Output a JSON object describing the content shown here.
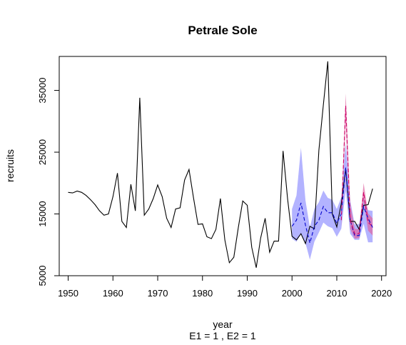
{
  "chart_data": {
    "type": "line",
    "title": "Petrale Sole",
    "xlabel": "year",
    "subtitle": "E1 = 1 , E2 = 1",
    "ylabel": "recruits",
    "xlim": [
      1948,
      2021
    ],
    "ylim": [
      5000,
      40500
    ],
    "xticks": [
      1950,
      1960,
      1970,
      1980,
      1990,
      2000,
      2010,
      2020
    ],
    "yticks": [
      5000,
      15000,
      25000,
      35000
    ],
    "grid": false,
    "colors": {
      "observed": "#000000",
      "forecast1": "#0000cc",
      "band1": "#9999ff",
      "forecast2": "#cc0066",
      "band2": "#e066a3"
    },
    "series": [
      {
        "role": "observed",
        "x": [
          1950,
          1951,
          1952,
          1953,
          1954,
          1955,
          1956,
          1957,
          1958,
          1959,
          1960,
          1961,
          1962,
          1963,
          1964,
          1965,
          1966,
          1967,
          1968,
          1969,
          1970,
          1971,
          1972,
          1973,
          1974,
          1975,
          1976,
          1977,
          1978,
          1979,
          1980,
          1981,
          1982,
          1983,
          1984,
          1985,
          1986,
          1987,
          1988,
          1989,
          1990,
          1991,
          1992,
          1993,
          1994,
          1995,
          1996,
          1997,
          1998,
          1999,
          2000,
          2001,
          2002,
          2003,
          2004,
          2005,
          2006,
          2007,
          2008,
          2009,
          2010,
          2011,
          2012,
          2013,
          2014,
          2015,
          2016,
          2017,
          2018
        ],
        "y": [
          18500,
          18400,
          18700,
          18500,
          18000,
          17300,
          16500,
          15500,
          14800,
          15000,
          17800,
          21600,
          13800,
          12800,
          19800,
          15500,
          33800,
          14800,
          15800,
          17500,
          19700,
          17800,
          14300,
          12800,
          15800,
          16000,
          20500,
          22200,
          17600,
          13300,
          13400,
          11300,
          11000,
          12500,
          17500,
          10800,
          7100,
          8000,
          12800,
          17100,
          16400,
          9600,
          6300,
          11100,
          14300,
          8800,
          10600,
          10600,
          25200,
          17500,
          11400,
          10800,
          11800,
          10200,
          13000,
          12600,
          25300,
          32700,
          39700,
          15000,
          12900,
          16700,
          22300,
          13800,
          13800,
          12500,
          16400,
          16500,
          19100
        ]
      },
      {
        "role": "forecast1",
        "x": [
          2000,
          2001,
          2002,
          2003,
          2004,
          2005,
          2006,
          2007,
          2008,
          2009,
          2010,
          2011,
          2012,
          2013,
          2014,
          2015,
          2016,
          2017,
          2018
        ],
        "y": [
          13000,
          14000,
          16800,
          13200,
          10300,
          13000,
          14000,
          16200,
          15200,
          15200,
          13500,
          15000,
          22500,
          14000,
          11500,
          11500,
          16200,
          14300,
          12800
        ],
        "lower": [
          11000,
          10500,
          11800,
          10300,
          7600,
          10500,
          12000,
          13600,
          13000,
          12700,
          11300,
          12600,
          18800,
          11800,
          10800,
          10800,
          13400,
          10400,
          10400
        ],
        "upper": [
          15800,
          18000,
          25700,
          17200,
          12800,
          15800,
          16900,
          18800,
          17600,
          17300,
          15800,
          17700,
          26500,
          17200,
          13300,
          13400,
          17800,
          15600,
          15500
        ]
      },
      {
        "role": "forecast2",
        "x": [
          2011,
          2012,
          2013,
          2014,
          2015,
          2016,
          2017,
          2018
        ],
        "y": [
          14000,
          32500,
          14000,
          11800,
          11800,
          18500,
          13700,
          12900
        ],
        "lower": [
          12800,
          30000,
          12600,
          11000,
          11100,
          17000,
          12300,
          11500
        ],
        "upper": [
          15300,
          34500,
          16700,
          12600,
          12500,
          20000,
          15100,
          14300
        ]
      }
    ]
  }
}
